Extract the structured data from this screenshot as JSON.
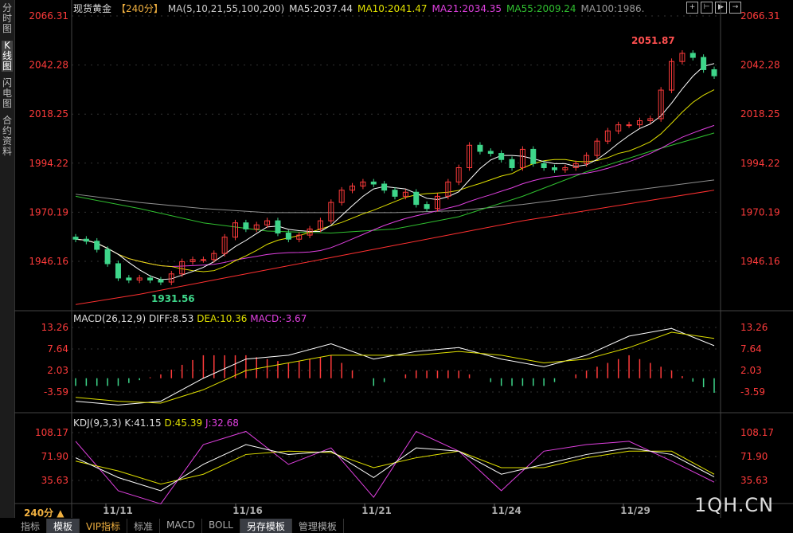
{
  "sidebar": [
    "分时图",
    "K线图",
    "闪电图",
    "合约资料"
  ],
  "header": {
    "title": "现货黄金",
    "period": "【240分】",
    "ma_label": "MA(5,10,21,55,100,200)",
    "ma5": "MA5:2037.44",
    "ma10": "MA10:2041.47",
    "ma21": "MA21:2034.35",
    "ma55": "MA55:2009.24",
    "ma100": "MA100:1986."
  },
  "macd_header": {
    "label": "MACD(26,12,9)",
    "diff": "DIFF:8.53",
    "dea": "DEA:10.36",
    "macd": "MACD:-3.67"
  },
  "kdj_header": {
    "label": "KDJ(9,3,3)",
    "k": "K:41.15",
    "d": "D:45.39",
    "j": "J:32.68"
  },
  "period_selector": "240分 ▲",
  "watermark": "1QH.CN",
  "tabs": [
    "指标",
    "模板",
    "VIP指标",
    "标准",
    "MACD",
    "BOLL",
    "另存模板",
    "管理模板"
  ],
  "colors": {
    "up": "#ff3b3b",
    "down": "#3ed68a",
    "ma5": "#ffffff",
    "ma10": "#e0e000",
    "ma21": "#e040e0",
    "ma55": "#30c030",
    "ma100": "#909090",
    "ma200": "#ff3030"
  },
  "chart_data": [
    {
      "type": "candlestick",
      "ylim": [
        1924,
        2069
      ],
      "yticks": [
        "2066.31",
        "2042.28",
        "2018.25",
        "1994.22",
        "1970.19",
        "1946.16"
      ],
      "xticks": [
        "11/11",
        "11/16",
        "11/21",
        "11/24",
        "11/29"
      ],
      "annotations": {
        "high": "2051.87",
        "low": "1931.56"
      },
      "closes": [
        1957,
        1956,
        1952,
        1945,
        1938,
        1937,
        1938,
        1937,
        1936,
        1940,
        1946,
        1947,
        1947,
        1950,
        1958,
        1965,
        1962,
        1964,
        1966,
        1960,
        1957,
        1959,
        1962,
        1966,
        1975,
        1981,
        1983,
        1985,
        1984,
        1981,
        1978,
        1980,
        1974,
        1972,
        1978,
        1985,
        1992,
        2003,
        2000,
        1999,
        1996,
        1992,
        2001,
        1994,
        1992,
        1991,
        1992,
        1994,
        1998,
        2005,
        2010,
        2013,
        2013,
        2015,
        2016,
        2030,
        2044,
        2048,
        2046,
        2040,
        2037
      ],
      "ma55": [
        1978,
        1972,
        1965,
        1961,
        1960,
        1962,
        1968,
        1978,
        1990,
        2000,
        2009
      ],
      "ma100": [
        1979,
        1975,
        1972,
        1970,
        1970,
        1970,
        1971,
        1974,
        1978,
        1982,
        1986
      ],
      "ma200": [
        1925,
        1930,
        1936,
        1942,
        1948,
        1954,
        1960,
        1966,
        1971,
        1976,
        1981
      ]
    },
    {
      "type": "macd",
      "yticks": [
        "13.26",
        "7.64",
        "2.03",
        "-3.59"
      ],
      "ylim": [
        -9,
        16
      ],
      "diff": [
        -6,
        -7,
        -6,
        0,
        5,
        6,
        9,
        5,
        7,
        8,
        5,
        3,
        6,
        11,
        13,
        8.5
      ],
      "dea": [
        -5,
        -6,
        -6.5,
        -3,
        2,
        4,
        6,
        6,
        6,
        7,
        6,
        4,
        5,
        8,
        12,
        10.4
      ]
    },
    {
      "type": "kdj",
      "yticks": [
        "108.17",
        "71.90",
        "35.63"
      ],
      "ylim": [
        0,
        125
      ],
      "k": [
        70,
        40,
        20,
        60,
        90,
        75,
        80,
        40,
        85,
        80,
        45,
        60,
        75,
        85,
        75,
        41
      ],
      "d": [
        65,
        50,
        30,
        45,
        75,
        80,
        78,
        55,
        70,
        80,
        55,
        55,
        70,
        80,
        80,
        45
      ],
      "j": [
        95,
        20,
        0,
        90,
        110,
        60,
        85,
        10,
        110,
        80,
        20,
        80,
        90,
        95,
        65,
        33
      ]
    }
  ]
}
